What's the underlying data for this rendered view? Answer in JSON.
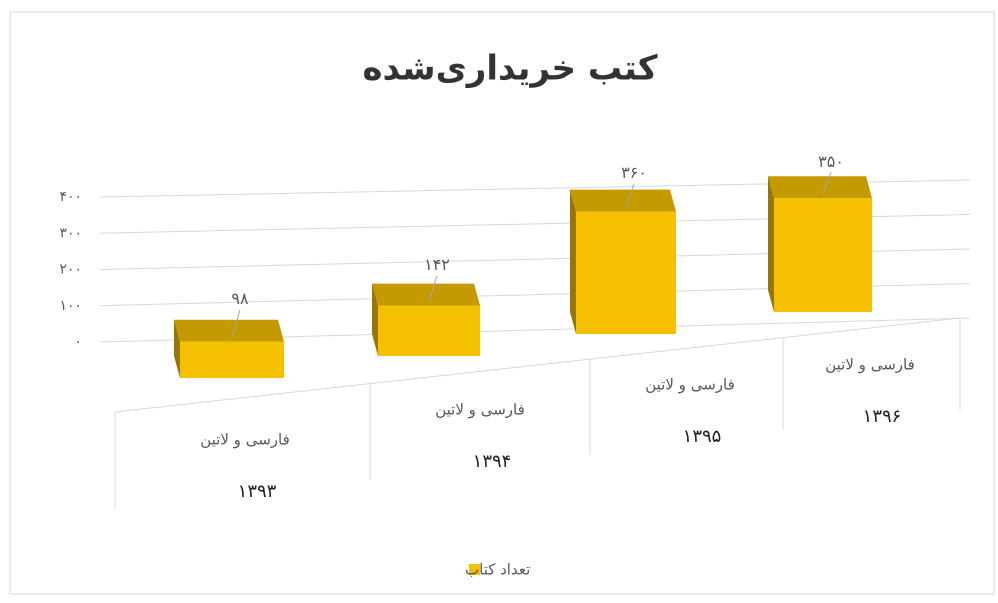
{
  "chart_data": {
    "type": "bar3d",
    "title": "کتب خریداری‌شده",
    "categories": [
      {
        "label": "فارسی و لاتین",
        "year": "۱۳۹۳"
      },
      {
        "label": "فارسی و لاتین",
        "year": "۱۳۹۴"
      },
      {
        "label": "فارسی و لاتین",
        "year": "۱۳۹۵"
      },
      {
        "label": "فارسی و لاتین",
        "year": "۱۳۹۶"
      }
    ],
    "series": [
      {
        "name": "تعداد کتاب",
        "color": "#f5c000",
        "values": [
          98,
          142,
          360,
          350
        ],
        "value_labels": [
          "۹۸",
          "۱۴۲",
          "۳۶۰",
          "۳۵۰"
        ]
      }
    ],
    "ylim": [
      0,
      400
    ],
    "yticks": [
      {
        "value": 0,
        "label": "۰"
      },
      {
        "value": 100,
        "label": "۱۰۰"
      },
      {
        "value": 200,
        "label": "۲۰۰"
      },
      {
        "value": 300,
        "label": "۳۰۰"
      },
      {
        "value": 400,
        "label": "۴۰۰"
      }
    ],
    "grid": true,
    "legend": "bottom"
  }
}
